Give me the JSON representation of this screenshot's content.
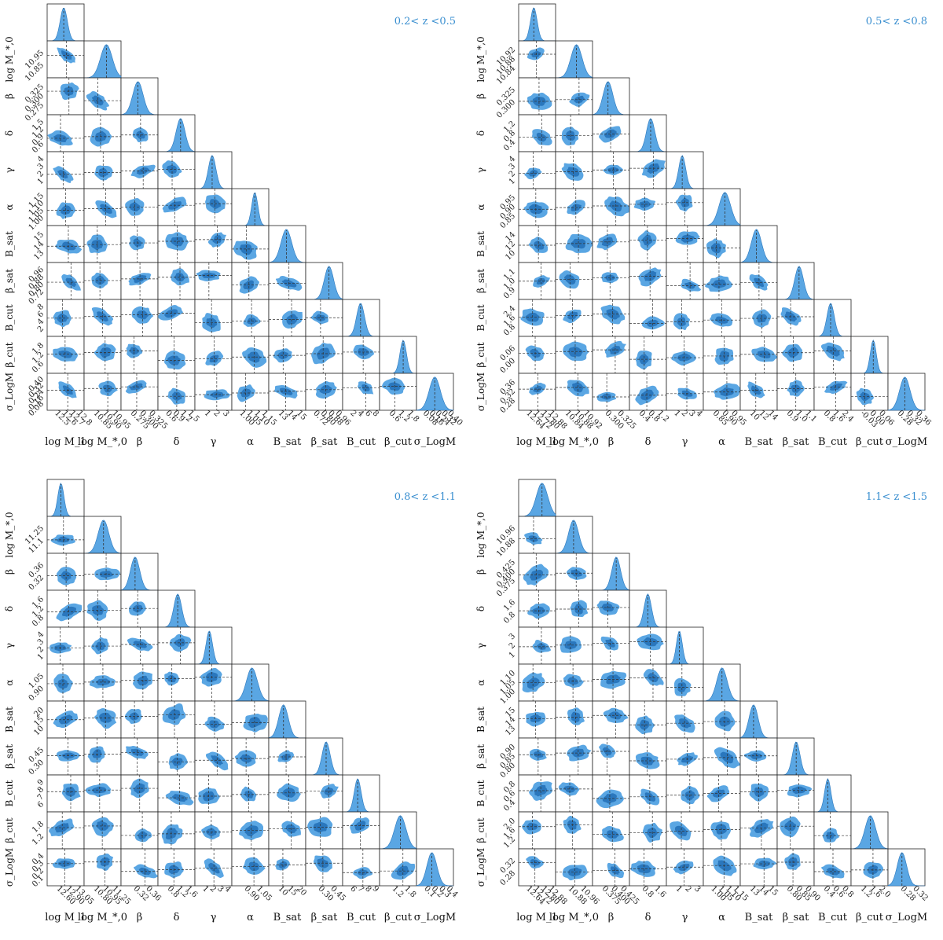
{
  "colors": {
    "light": "#5aa6e3",
    "dark": "#2a77bd",
    "title": "#3a8fd0",
    "frame": "#222222",
    "dashed": "#333333"
  },
  "parameters_x": [
    "log M_1",
    "log M_*,0",
    "β",
    "δ",
    "γ",
    "α",
    "B_sat",
    "β_sat",
    "B_cut",
    "β_cut",
    "σ_LogM"
  ],
  "parameters_y": [
    "log M_*,0",
    "β",
    "δ",
    "γ",
    "α",
    "B_sat",
    "β_sat",
    "B_cut",
    "β_cut",
    "σ_LogM"
  ],
  "chart_data": [
    {
      "type": "corner",
      "title": "0.2< z <0.5",
      "x_ticks": {
        "log M_1": [
          "12.5",
          "12.6",
          "12.7",
          "12.8"
        ],
        "log M_*,0": [
          "10.85",
          "10.90",
          "10.95"
        ],
        "β": [
          "0.275",
          "0.300",
          "0.325"
        ],
        "δ": [
          "0.6",
          "0.9",
          "1.2",
          "1.5"
        ],
        "γ": [
          "1",
          "2",
          "3"
        ],
        "α": [
          "1.00",
          "1.05",
          "1.10",
          "1.15"
        ],
        "B_sat": [
          "13",
          "14",
          "15"
        ],
        "β_sat": [
          "0.72",
          "0.80",
          "0.88",
          "0.96"
        ],
        "B_cut": [
          "2",
          "4",
          "6",
          "8"
        ],
        "β_cut": [
          "0.6",
          "1.2",
          "1.8"
        ],
        "σ_LogM": [
          "0.08",
          "0.16",
          "0.24",
          "0.32",
          "0.40"
        ]
      },
      "y_ticks": {
        "log M_*,0": [
          "10.85",
          "10.95"
        ],
        "β": [
          "0.275",
          "0.300",
          "0.325"
        ],
        "δ": [
          "0.6",
          "0.9",
          "1.2",
          "1.5"
        ],
        "γ": [
          "1",
          "2",
          "3",
          "4"
        ],
        "α": [
          "1.00",
          "1.05",
          "1.10",
          "1.15"
        ],
        "B_sat": [
          "13",
          "14",
          "15"
        ],
        "β_sat": [
          "0.72",
          "0.80",
          "0.88",
          "0.96"
        ],
        "B_cut": [
          "2",
          "4",
          "6",
          "8"
        ],
        "β_cut": [
          "0.6",
          "1.2",
          "1.8"
        ],
        "σ_LogM": [
          "0.08",
          "0.16",
          "0.24",
          "0.32",
          "0.40"
        ]
      }
    },
    {
      "type": "corner",
      "title": "0.5< z <0.8",
      "x_ticks": {
        "log M_1": [
          "12.64",
          "12.72",
          "12.80",
          "12.88"
        ],
        "log M_*,0": [
          "10.84",
          "10.88",
          "10.92"
        ],
        "β": [
          "0.300",
          "0.325"
        ],
        "δ": [
          "0.4",
          "0.8",
          "1.2"
        ],
        "γ": [
          "1",
          "2",
          "3",
          "4"
        ],
        "α": [
          "0.85",
          "0.90",
          "0.95"
        ],
        "B_sat": [
          "10",
          "12",
          "14"
        ],
        "β_sat": [
          "0.9",
          "1.0",
          "1.1"
        ],
        "B_cut": [
          "0.8",
          "1.6",
          "2.4"
        ],
        "β_cut": [
          "-0.03",
          "0.00",
          "0.06"
        ],
        "σ_LogM": [
          "0.28",
          "0.32",
          "0.36"
        ]
      },
      "y_ticks": {
        "log M_*,0": [
          "10.84",
          "10.88",
          "10.92"
        ],
        "β": [
          "0.300",
          "0.325"
        ],
        "δ": [
          "0.4",
          "0.8",
          "1.2"
        ],
        "γ": [
          "1",
          "2",
          "3",
          "4"
        ],
        "α": [
          "0.85",
          "0.90",
          "0.95"
        ],
        "B_sat": [
          "10",
          "12",
          "14"
        ],
        "β_sat": [
          "0.9",
          "1.0",
          "1.1"
        ],
        "B_cut": [
          "0.8",
          "1.6",
          "2.4"
        ],
        "β_cut": [
          "0.00",
          "0.06"
        ],
        "σ_LogM": [
          "0.28",
          "0.32",
          "0.36"
        ]
      }
    },
    {
      "type": "corner",
      "title": "0.8< z <1.1",
      "x_ticks": {
        "log M_1": [
          "12.60",
          "12.90",
          "13.05"
        ],
        "log M_*,0": [
          "10.80",
          "10.95",
          "11.25"
        ],
        "β": [
          "0.32",
          "0.36"
        ],
        "δ": [
          "0.8",
          "1.2",
          "1.6"
        ],
        "γ": [
          "1",
          "2",
          "3",
          "4"
        ],
        "α": [
          "0.90",
          "1.05"
        ],
        "B_sat": [
          "10",
          "15",
          "20"
        ],
        "β_sat": [
          "0.30",
          "0.45"
        ],
        "B_cut": [
          "6",
          "7",
          "8",
          "9"
        ],
        "β_cut": [
          "1.2",
          "1.8"
        ],
        "σ_LogM": [
          "0.1",
          "0.2",
          "0.3",
          "0.4"
        ]
      },
      "y_ticks": {
        "log M_*,0": [
          "11.1",
          "11.25"
        ],
        "β": [
          "0.32",
          "0.36"
        ],
        "δ": [
          "0.8",
          "1.2",
          "1.6"
        ],
        "γ": [
          "1",
          "2",
          "3",
          "4"
        ],
        "α": [
          "0.90",
          "1.05"
        ],
        "B_sat": [
          "10",
          "15",
          "20"
        ],
        "β_sat": [
          "0.30",
          "0.45"
        ],
        "B_cut": [
          "6",
          "7",
          "8",
          "9"
        ],
        "β_cut": [
          "1.2",
          "1.8"
        ],
        "σ_LogM": [
          "0.1",
          "0.2",
          "0.3",
          "0.4"
        ]
      }
    },
    {
      "type": "corner",
      "title": "1.1< z <1.5",
      "x_ticks": {
        "log M_1": [
          "12.64",
          "12.72",
          "12.80",
          "12.88"
        ],
        "log M_*,0": [
          "10.88",
          "10.96"
        ],
        "β": [
          "0.375",
          "0.400",
          "0.425"
        ],
        "δ": [
          "0.8",
          "1.6"
        ],
        "γ": [
          "1",
          "2",
          "3"
        ],
        "α": [
          "1.00",
          "1.05",
          "1.10",
          "1.15"
        ],
        "B_sat": [
          "13",
          "14",
          "15"
        ],
        "β_sat": [
          "0.80",
          "0.85",
          "0.90"
        ],
        "B_cut": [
          "0.4",
          "0.6",
          "0.8"
        ],
        "β_cut": [
          "1.2",
          "1.6",
          "2.0"
        ],
        "σ_LogM": [
          "0.28",
          "0.32"
        ]
      },
      "y_ticks": {
        "log M_*,0": [
          "10.88",
          "10.96"
        ],
        "β": [
          "0.375",
          "0.400",
          "0.425"
        ],
        "δ": [
          "0.8",
          "1.6"
        ],
        "γ": [
          "1",
          "2",
          "3"
        ],
        "α": [
          "1.00",
          "1.05",
          "1.10"
        ],
        "B_sat": [
          "13",
          "14",
          "15"
        ],
        "β_sat": [
          "0.80",
          "0.85",
          "0.90"
        ],
        "B_cut": [
          "0.4",
          "0.6",
          "0.8"
        ],
        "β_cut": [
          "1.2",
          "1.6",
          "2.0"
        ],
        "σ_LogM": [
          "0.28",
          "0.32"
        ]
      }
    }
  ]
}
